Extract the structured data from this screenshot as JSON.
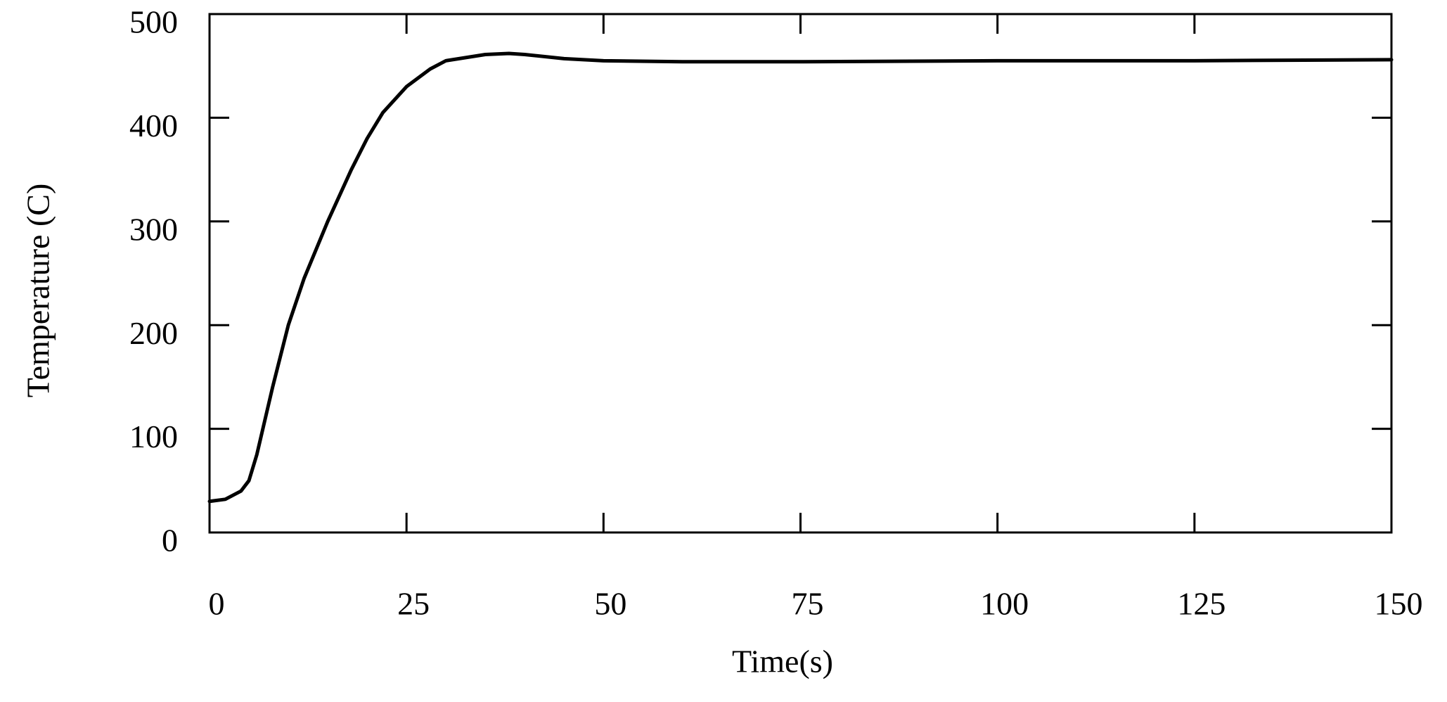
{
  "chart_data": {
    "type": "line",
    "x_label": "Time(s)",
    "y_label": "Temperature (C)",
    "x": [
      0,
      2,
      4,
      5,
      6,
      8,
      10,
      12,
      15,
      18,
      20,
      22,
      25,
      28,
      30,
      35,
      38,
      40,
      45,
      50,
      60,
      75,
      100,
      125,
      150
    ],
    "series": [
      {
        "color": "#000000",
        "values": [
          30,
          32,
          40,
          50,
          75,
          140,
          200,
          245,
          300,
          350,
          380,
          405,
          430,
          447,
          455,
          461,
          462,
          461,
          457,
          455,
          454,
          454,
          455,
          455,
          456
        ]
      }
    ],
    "xlim": [
      0,
      150
    ],
    "xticks": [
      0,
      25,
      50,
      75,
      100,
      125,
      150
    ],
    "ylim": [
      0,
      500
    ],
    "yticks": [
      0,
      100,
      200,
      300,
      400,
      500
    ],
    "grid": false
  }
}
